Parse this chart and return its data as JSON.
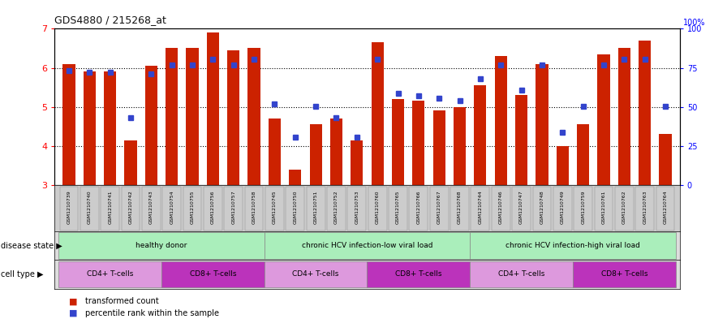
{
  "title": "GDS4880 / 215268_at",
  "samples": [
    "GSM1210739",
    "GSM1210740",
    "GSM1210741",
    "GSM1210742",
    "GSM1210743",
    "GSM1210754",
    "GSM1210755",
    "GSM1210756",
    "GSM1210757",
    "GSM1210758",
    "GSM1210745",
    "GSM1210750",
    "GSM1210751",
    "GSM1210752",
    "GSM1210753",
    "GSM1210760",
    "GSM1210765",
    "GSM1210766",
    "GSM1210767",
    "GSM1210768",
    "GSM1210744",
    "GSM1210746",
    "GSM1210747",
    "GSM1210748",
    "GSM1210749",
    "GSM1210759",
    "GSM1210761",
    "GSM1210762",
    "GSM1210763",
    "GSM1210764"
  ],
  "bar_values": [
    6.1,
    5.9,
    5.9,
    4.15,
    6.05,
    6.5,
    6.5,
    6.9,
    6.45,
    6.5,
    4.7,
    3.4,
    4.55,
    4.7,
    4.15,
    6.65,
    5.2,
    5.15,
    4.9,
    5.0,
    5.55,
    6.3,
    5.3,
    6.1,
    4.0,
    4.55,
    6.35,
    6.5,
    6.7,
    4.3
  ],
  "percentile_values": [
    5.93,
    5.88,
    5.88,
    4.72,
    5.85,
    6.08,
    6.08,
    6.22,
    6.08,
    6.22,
    5.08,
    4.22,
    5.02,
    4.72,
    4.22,
    6.22,
    5.35,
    5.28,
    5.22,
    5.15,
    5.72,
    6.08,
    5.42,
    6.08,
    4.35,
    5.02,
    6.08,
    6.22,
    6.22,
    5.02
  ],
  "bar_color": "#CC2200",
  "point_color": "#3344CC",
  "ylim_left": [
    3,
    7
  ],
  "ylim_right": [
    0,
    100
  ],
  "yticks_left": [
    3,
    4,
    5,
    6,
    7
  ],
  "yticks_right": [
    0,
    25,
    50,
    75,
    100
  ],
  "disease_groups": [
    {
      "label": "healthy donor",
      "start": 0,
      "end": 9,
      "color": "#AAEEBB"
    },
    {
      "label": "chronic HCV infection-low viral load",
      "start": 10,
      "end": 19,
      "color": "#AAEEBB"
    },
    {
      "label": "chronic HCV infection-high viral load",
      "start": 20,
      "end": 29,
      "color": "#AAEEBB"
    }
  ],
  "cell_groups": [
    {
      "label": "CD4+ T-cells",
      "start": 0,
      "end": 4,
      "color": "#DD99DD"
    },
    {
      "label": "CD8+ T-cells",
      "start": 5,
      "end": 9,
      "color": "#CC44CC"
    },
    {
      "label": "CD4+ T-cells",
      "start": 10,
      "end": 14,
      "color": "#DD99DD"
    },
    {
      "label": "CD8+ T-cells",
      "start": 15,
      "end": 19,
      "color": "#CC44CC"
    },
    {
      "label": "CD4+ T-cells",
      "start": 20,
      "end": 24,
      "color": "#DD99DD"
    },
    {
      "label": "CD8+ T-cells",
      "start": 25,
      "end": 29,
      "color": "#CC44CC"
    }
  ],
  "disease_state_label": "disease state",
  "cell_type_label": "cell type",
  "legend_bar_label": "transformed count",
  "legend_point_label": "percentile rank within the sample",
  "tick_bg_color": "#CCCCCC",
  "bar_width": 0.6,
  "title_color": "#333333"
}
